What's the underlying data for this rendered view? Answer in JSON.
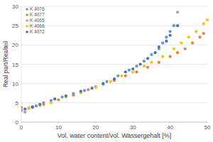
{
  "chart_data": {
    "type": "scatter",
    "x_label": "Vol. water content/vol. Wassergehalt [%]",
    "y_label": "Real part/Realteil",
    "xlim": [
      0,
      50
    ],
    "ylim": [
      0,
      30
    ],
    "xticks": [
      0,
      10,
      20,
      30,
      40,
      50
    ],
    "yticks": [
      0,
      5,
      10,
      15,
      20,
      25,
      30
    ],
    "grid": true,
    "legend": "top-left",
    "marker": "circle",
    "series": [
      {
        "name": "K 4076",
        "color": "#5b9bd5",
        "x": [
          0,
          2,
          4,
          6,
          8,
          11,
          14,
          17,
          20,
          23,
          26,
          29,
          31,
          33,
          35,
          37,
          38,
          39,
          40,
          41
        ],
        "values": [
          3,
          3.6,
          4.2,
          5,
          5.6,
          6.5,
          7.4,
          8.2,
          9.2,
          10.5,
          12,
          13.5,
          14.5,
          15.8,
          17.5,
          19,
          20.5,
          22,
          23.5,
          25
        ]
      },
      {
        "name": "K 4077",
        "color": "#ed7d31",
        "x": [
          0,
          3,
          6,
          10,
          14,
          18,
          22,
          25,
          28,
          31,
          34,
          37,
          40,
          42,
          44,
          46,
          48,
          49
        ],
        "values": [
          3.8,
          4,
          4.6,
          5.8,
          7,
          8.4,
          9.8,
          10.8,
          12,
          13,
          14.2,
          15.5,
          17,
          18,
          19,
          20.5,
          22,
          23
        ]
      },
      {
        "name": "K 4065",
        "color": "#a5a5a5",
        "x": [
          0,
          1,
          3,
          42
        ],
        "values": [
          3.2,
          2.6,
          3.8,
          28.5
        ]
      },
      {
        "name": "K 4066",
        "color": "#ffc000",
        "x": [
          2,
          5,
          8,
          12,
          16,
          20,
          24,
          27,
          30,
          33,
          35,
          38,
          41,
          43,
          45,
          47,
          49,
          50
        ],
        "values": [
          3.5,
          4.3,
          5,
          6.5,
          7.6,
          9,
          10.5,
          12,
          13,
          14.5,
          15.5,
          17,
          19,
          20.5,
          22,
          23.5,
          25.5,
          26.5
        ]
      },
      {
        "name": "K 4072",
        "color": "#4472c4",
        "x": [
          1,
          3,
          5,
          9,
          12,
          16,
          19,
          22,
          25,
          28,
          30,
          32,
          34,
          36,
          37,
          39,
          40,
          42
        ],
        "values": [
          3.4,
          3.9,
          4.6,
          6,
          6.8,
          8,
          8.8,
          10,
          11.2,
          13,
          13.8,
          15,
          16.5,
          18,
          19.5,
          21,
          22.5,
          25
        ]
      }
    ]
  }
}
